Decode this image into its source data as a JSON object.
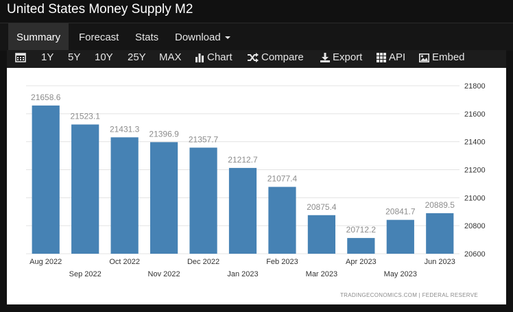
{
  "header": {
    "title": "United States Money Supply M2"
  },
  "nav": {
    "summary": "Summary",
    "forecast": "Forecast",
    "stats": "Stats",
    "download": "Download"
  },
  "toolbar": {
    "y1": "1Y",
    "y5": "5Y",
    "y10": "10Y",
    "y25": "25Y",
    "max": "MAX",
    "chart": "Chart",
    "compare": "Compare",
    "export": "Export",
    "api": "API",
    "embed": "Embed"
  },
  "chart_data": {
    "type": "bar",
    "categories": [
      "Aug 2022",
      "Sep 2022",
      "Oct 2022",
      "Nov 2022",
      "Dec 2022",
      "Jan 2023",
      "Feb 2023",
      "Mar 2023",
      "Apr 2023",
      "May 2023",
      "Jun 2023"
    ],
    "values": [
      21658.6,
      21523.1,
      21431.3,
      21396.9,
      21357.7,
      21212.7,
      21077.4,
      20875.4,
      20712.2,
      20841.7,
      20889.5
    ],
    "value_labels": [
      "21658.6",
      "21523.1",
      "21431.3",
      "21396.9",
      "21357.7",
      "21212.7",
      "21077.4",
      "20875.4",
      "20712.2",
      "20841.7",
      "20889.5"
    ],
    "yticks": [
      20600,
      20800,
      21000,
      21200,
      21400,
      21600,
      21800
    ],
    "ytick_labels": [
      "20600",
      "20800",
      "21000",
      "21200",
      "21400",
      "21600",
      "21800"
    ],
    "ylim": [
      20600,
      21800
    ],
    "yaxis_position": "right",
    "grid": true,
    "bar_color": "#4682b4",
    "source": "TRADINGECONOMICS.COM  |  FEDERAL  RESERVE"
  }
}
